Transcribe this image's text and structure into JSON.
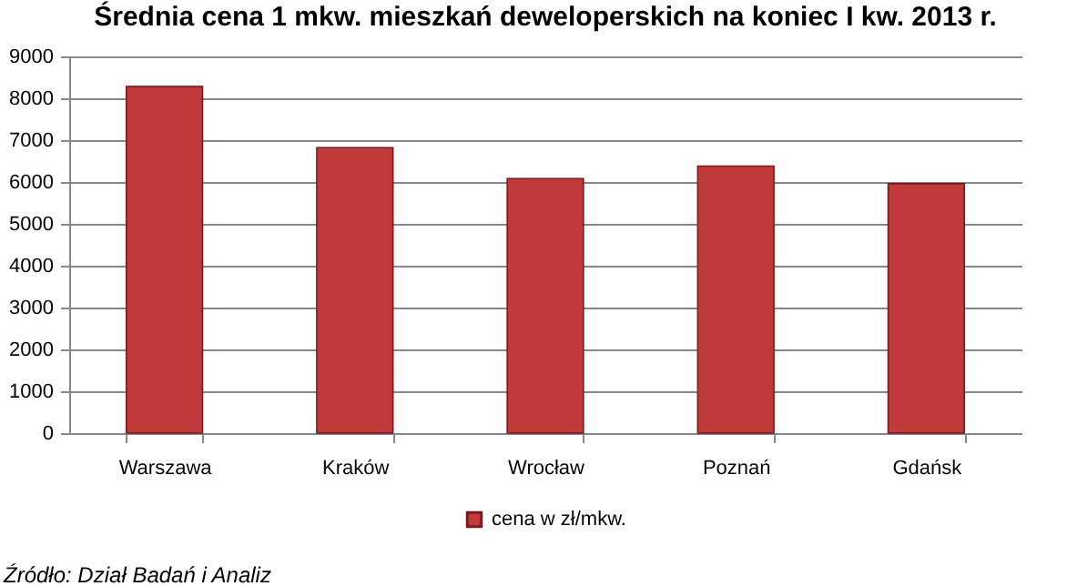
{
  "chart_data": {
    "type": "bar",
    "title": "Średnia cena 1 mkw. mieszkań deweloperskich na koniec I kw. 2013 r.",
    "categories": [
      "Warszawa",
      "Kraków",
      "Wrocław",
      "Poznań",
      "Gdańsk"
    ],
    "series": [
      {
        "name": "cena w zł/mkw.",
        "color": "#c0393b",
        "values": [
          8280,
          6820,
          6080,
          6380,
          5960
        ]
      }
    ],
    "ylim": [
      0,
      9000
    ],
    "yticks": [
      0,
      1000,
      2000,
      3000,
      4000,
      5000,
      6000,
      7000,
      8000,
      9000
    ],
    "grid": "y",
    "legend": "bottom",
    "annotations": [
      "Źródło: Dział Badań i Analiz"
    ]
  }
}
